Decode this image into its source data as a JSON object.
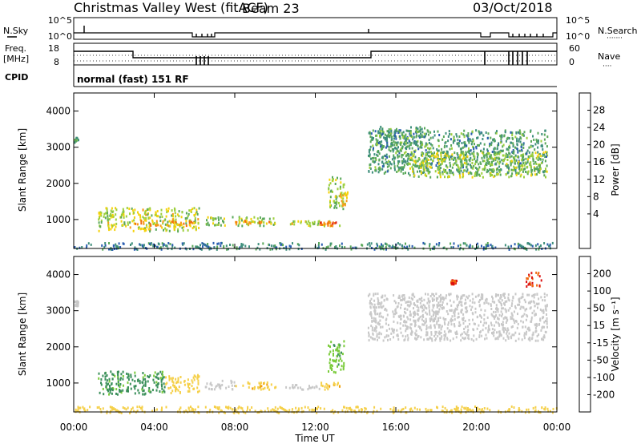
{
  "header": {
    "station": "Christmas Valley West (fitACF)",
    "beam": "Beam 23",
    "date": "03/Oct/2018"
  },
  "top_panels": {
    "nsky_label": "N.Sky",
    "nsky_ticks": [
      "10^5",
      "10^0"
    ],
    "nsearch_label": "N.Search",
    "nsearch_ticks": [
      "10^5",
      "10^0"
    ],
    "freq_label": "Freq.",
    "freq_unit": "[MHz]",
    "freq_ticks": [
      "18",
      "8"
    ],
    "nave_label": "Nave",
    "nave_ticks": [
      "60",
      "0"
    ],
    "cpid_label": "CPID",
    "cpid_value": "normal (fast) 151 RF"
  },
  "colors": {
    "power_scale": [
      "#0000ff",
      "#2a5db0",
      "#3f8f7c",
      "#5aa85a",
      "#9ccf3c",
      "#f5d20a",
      "#f79a16",
      "#f06a10",
      "#e11d14"
    ],
    "velocity_scale": [
      "#1c2aa8",
      "#2f6eb8",
      "#3a8f5a",
      "#7acb3a",
      "#c8c8c8",
      "#f5d04a",
      "#f0a010",
      "#f06810",
      "#dd1010"
    ],
    "ground_scatter": "#bebebe"
  },
  "x_axis": {
    "title": "Time UT",
    "ticks": [
      "00:00",
      "04:00",
      "08:00",
      "12:00",
      "16:00",
      "20:00",
      "00:00"
    ]
  },
  "chart_data": [
    {
      "type": "heatmap",
      "quantity": "power",
      "ylabel": "Slant Range [km]",
      "colorbar_label": "Power [dB]",
      "colorbar_ticks": [
        "28",
        "24",
        "20",
        "16",
        "12",
        "8",
        "4"
      ],
      "y_ticks": [
        4000,
        3000,
        2000,
        1000
      ],
      "ylim": [
        200,
        4500
      ],
      "xlim_hours": [
        0,
        24
      ],
      "regions": [
        {
          "t": [
            0.0,
            0.2
          ],
          "r": [
            3150,
            3300
          ],
          "db": 12
        },
        {
          "t": [
            1.2,
            6.2
          ],
          "r": [
            700,
            1350
          ],
          "db": 16
        },
        {
          "t": [
            3.0,
            6.0
          ],
          "r": [
            850,
            1000
          ],
          "db": 22
        },
        {
          "t": [
            6.5,
            10.0
          ],
          "r": [
            850,
            1100
          ],
          "db": 14
        },
        {
          "t": [
            8.0,
            9.8
          ],
          "r": [
            900,
            1000
          ],
          "db": 22
        },
        {
          "t": [
            10.5,
            13.2
          ],
          "r": [
            850,
            1000
          ],
          "db": 16
        },
        {
          "t": [
            12.2,
            13.0
          ],
          "r": [
            850,
            950
          ],
          "db": 24
        },
        {
          "t": [
            12.6,
            13.4
          ],
          "r": [
            1300,
            2200
          ],
          "db": 14
        },
        {
          "t": [
            13.2,
            13.6
          ],
          "r": [
            1400,
            1800
          ],
          "db": 18
        },
        {
          "t": [
            14.6,
            23.5
          ],
          "r": [
            2300,
            3500
          ],
          "db": 10
        },
        {
          "t": [
            15.0,
            17.5
          ],
          "r": [
            3000,
            3600
          ],
          "db": 10
        },
        {
          "t": [
            16.5,
            23.5
          ],
          "r": [
            2200,
            2900
          ],
          "db": 14
        },
        {
          "t": [
            0.0,
            24.0
          ],
          "r": [
            200,
            380
          ],
          "db": 8
        }
      ]
    },
    {
      "type": "heatmap",
      "quantity": "velocity",
      "ylabel": "Slant Range [km]",
      "colorbar_label": "Velocity [m s⁻¹]",
      "colorbar_ticks": [
        "200",
        "100",
        "50",
        "15",
        "-15",
        "-50",
        "-100",
        "-200"
      ],
      "y_ticks": [
        4000,
        3000,
        2000,
        1000
      ],
      "ylim": [
        200,
        4500
      ],
      "xlim_hours": [
        0,
        24
      ],
      "regions": [
        {
          "t": [
            0.0,
            0.2
          ],
          "r": [
            3150,
            3300
          ],
          "v": 0
        },
        {
          "t": [
            1.2,
            4.5
          ],
          "r": [
            700,
            1350
          ],
          "v": 60
        },
        {
          "t": [
            4.5,
            6.2
          ],
          "r": [
            750,
            1250
          ],
          "v": -30
        },
        {
          "t": [
            6.5,
            8.0
          ],
          "r": [
            850,
            1100
          ],
          "v": 0
        },
        {
          "t": [
            8.0,
            10.0
          ],
          "r": [
            850,
            1050
          ],
          "v": -40
        },
        {
          "t": [
            10.5,
            12.2
          ],
          "r": [
            850,
            1000
          ],
          "v": 0
        },
        {
          "t": [
            12.2,
            13.2
          ],
          "r": [
            850,
            1050
          ],
          "v": -40
        },
        {
          "t": [
            12.6,
            13.4
          ],
          "r": [
            1300,
            2200
          ],
          "v": 40
        },
        {
          "t": [
            14.6,
            23.5
          ],
          "r": [
            2200,
            3500
          ],
          "v": 0
        },
        {
          "t": [
            18.7,
            19.0
          ],
          "r": [
            3750,
            3900
          ],
          "v": -200
        },
        {
          "t": [
            22.4,
            23.2
          ],
          "r": [
            3700,
            4100
          ],
          "v": -200
        },
        {
          "t": [
            0.0,
            24.0
          ],
          "r": [
            200,
            380
          ],
          "v": -30
        }
      ]
    }
  ]
}
